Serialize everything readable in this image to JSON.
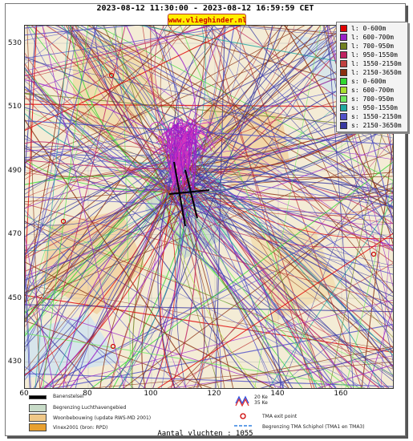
{
  "header": {
    "title": "2023-08-12 11:30:00 - 2023-08-12 16:59:59 CET",
    "site": "www.vlieghinder.nl"
  },
  "map": {
    "y_ticks": [
      "530",
      "510",
      "490",
      "470",
      "450",
      "430"
    ],
    "x_ticks": [
      "60",
      "80",
      "100",
      "120",
      "140",
      "160"
    ],
    "background_colors": {
      "land": "#f4ecd6",
      "airport": "#c8dcc8",
      "urban": "#f0c888",
      "water": "#cfe4f0"
    }
  },
  "legend": {
    "items": [
      {
        "label": "l: 0-600m",
        "color": "#e00000"
      },
      {
        "label": "l: 600-700m",
        "color": "#9a20c8"
      },
      {
        "label": "l: 700-950m",
        "color": "#708020"
      },
      {
        "label": "l: 950-1550m",
        "color": "#c02060"
      },
      {
        "label": "l: 1550-2150m",
        "color": "#c04040"
      },
      {
        "label": "l: 2150-3650m",
        "color": "#8a3010"
      },
      {
        "label": "s: 0-600m",
        "color": "#30d830"
      },
      {
        "label": "s: 600-700m",
        "color": "#a8e030"
      },
      {
        "label": "s: 700-950m",
        "color": "#70e860"
      },
      {
        "label": "s: 950-1550m",
        "color": "#20a8a0"
      },
      {
        "label": "s: 1550-2150m",
        "color": "#5050c8"
      },
      {
        "label": "s: 2150-3650m",
        "color": "#3838a0"
      }
    ]
  },
  "map_legend": {
    "runway": "Banenstelsel",
    "airport_area": "Begrenzing Luchthavengebied",
    "housing": "Woonbebouwing (update RWS-MD 2001)",
    "vinex": "Vinex2001 (bron: RPD)",
    "ke20": "20 Ke",
    "ke35": "35 Ke",
    "tma_exit": "TMA exit point",
    "tma_boundary": "Begrenzing TMA Schiphol  (TMA1 en TMA3)"
  },
  "footer": {
    "count": "Aantal vluchten : 1055"
  }
}
